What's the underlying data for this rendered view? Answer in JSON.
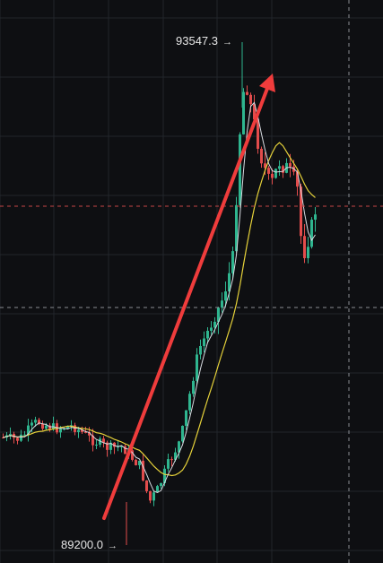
{
  "chart": {
    "high_label": "93547.3",
    "low_label": "89200.0",
    "arrow_glyph": "→",
    "colors": {
      "background": "#0e0f12",
      "grid": "#22252b",
      "up": "#2fb58f",
      "down": "#e24c4c",
      "ma_fast": "#d9dce2",
      "ma_slow": "#e6d23a",
      "dashed_price": "#c74646",
      "dashed_cross": "#8a8d93",
      "trend_arrow": "#ef3c3c"
    }
  },
  "chart_data": {
    "type": "candlestick",
    "title": "",
    "y_range": [
      89000,
      94000
    ],
    "max_price": 93547.3,
    "min_price": 89200.0,
    "grid": true,
    "overlays": [
      "moving-average-fast",
      "moving-average-slow",
      "trend-arrow",
      "price-line",
      "crosshair"
    ]
  }
}
